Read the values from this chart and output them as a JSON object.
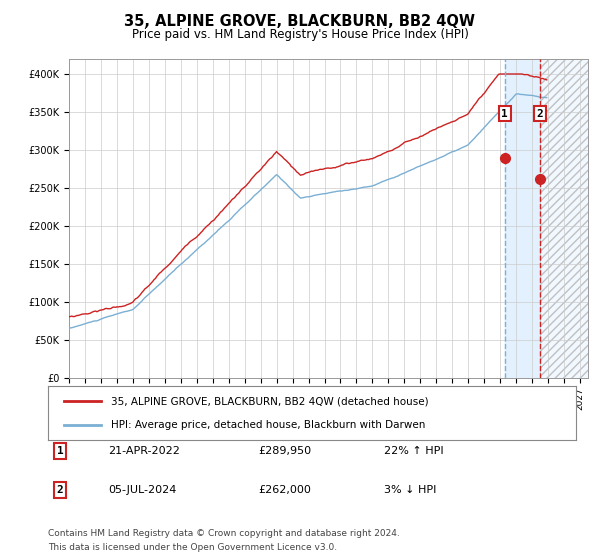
{
  "title": "35, ALPINE GROVE, BLACKBURN, BB2 4QW",
  "subtitle": "Price paid vs. HM Land Registry's House Price Index (HPI)",
  "legend_line1": "35, ALPINE GROVE, BLACKBURN, BB2 4QW (detached house)",
  "legend_line2": "HPI: Average price, detached house, Blackburn with Darwen",
  "annotation1_date": "21-APR-2022",
  "annotation1_price": "£289,950",
  "annotation1_hpi": "22% ↑ HPI",
  "annotation2_date": "05-JUL-2024",
  "annotation2_price": "£262,000",
  "annotation2_hpi": "3% ↓ HPI",
  "footer1": "Contains HM Land Registry data © Crown copyright and database right 2024.",
  "footer2": "This data is licensed under the Open Government Licence v3.0.",
  "ylim": [
    0,
    420000
  ],
  "yticks": [
    0,
    50000,
    100000,
    150000,
    200000,
    250000,
    300000,
    350000,
    400000
  ],
  "ytick_labels": [
    "£0",
    "£50K",
    "£100K",
    "£150K",
    "£200K",
    "£250K",
    "£300K",
    "£350K",
    "£400K"
  ],
  "hpi_color": "#7bafd4",
  "sale_color": "#cc2222",
  "marker_color": "#cc2222",
  "marker1_value": 289950,
  "marker2_value": 262000,
  "vline1_year": 2022.29,
  "vline2_year": 2024.5,
  "xlim_start": 1995.0,
  "xlim_end": 2027.5,
  "background_color": "#ffffff",
  "grid_color": "#cccccc",
  "shade_color": "#ddeeff",
  "box_color": "#cc2222",
  "title_fontsize": 10.5,
  "subtitle_fontsize": 8.5,
  "tick_fontsize": 7,
  "label_fontsize": 8
}
